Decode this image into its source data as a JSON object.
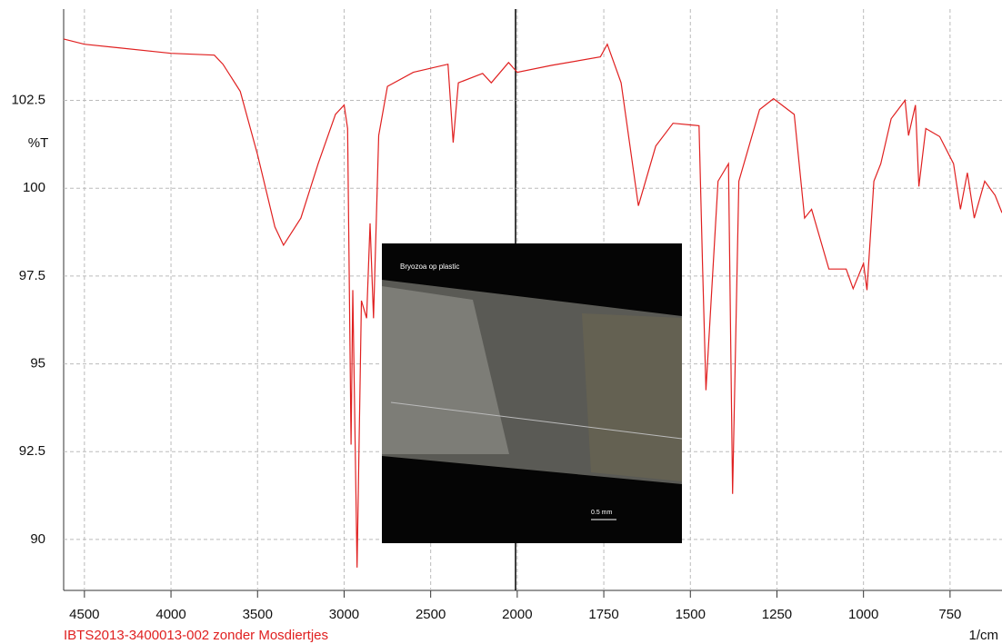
{
  "chart_data": {
    "type": "line",
    "x_label": "1/cm",
    "y_label": "%T",
    "footnote": "IBTS2013-3400013-002  zonder Mosdiertjes",
    "inset_caption": "Bryozoa op plastic",
    "inset_scale_label": "0.5 mm",
    "xlim": [
      4620,
      600
    ],
    "ylim": [
      88.55,
      105.1
    ],
    "xticks": [
      4500,
      4000,
      3500,
      3000,
      2500,
      2000,
      1750,
      1500,
      1250,
      1000,
      750
    ],
    "yticks": [
      90,
      92.5,
      95,
      97.5,
      100,
      102.5
    ],
    "grid": true,
    "series": [
      {
        "color": "#e02020",
        "x": [
          4620,
          4500,
          4000,
          3750,
          3700,
          3600,
          3500,
          3400,
          3350,
          3250,
          3150,
          3050,
          3000,
          2980,
          2960,
          2950,
          2925,
          2900,
          2870,
          2850,
          2830,
          2800,
          2750,
          2600,
          2400,
          2370,
          2340,
          2200,
          2150,
          2050,
          2000,
          1900,
          1760,
          1740,
          1700,
          1650,
          1600,
          1550,
          1475,
          1465,
          1455,
          1420,
          1390,
          1378,
          1360,
          1300,
          1260,
          1200,
          1170,
          1150,
          1100,
          1050,
          1030,
          1000,
          990,
          970,
          950,
          920,
          880,
          870,
          850,
          840,
          820,
          780,
          740,
          720,
          700,
          680,
          650,
          620,
          600
        ],
        "values": [
          104.25,
          104.1,
          103.84,
          103.79,
          103.53,
          102.76,
          100.95,
          98.9,
          98.38,
          99.15,
          100.7,
          102.1,
          102.37,
          101.7,
          92.7,
          97.1,
          89.2,
          96.8,
          96.3,
          99.0,
          96.3,
          101.5,
          102.9,
          103.3,
          103.53,
          101.3,
          103.0,
          103.27,
          103.0,
          103.58,
          103.3,
          103.5,
          103.74,
          104.1,
          103.0,
          99.5,
          101.2,
          101.85,
          101.78,
          97.86,
          94.25,
          100.2,
          100.7,
          91.3,
          100.2,
          102.24,
          102.55,
          102.1,
          99.15,
          99.4,
          97.7,
          97.7,
          97.14,
          97.86,
          97.1,
          100.2,
          100.7,
          101.98,
          102.5,
          101.5,
          102.37,
          100.05,
          101.7,
          101.47,
          100.7,
          99.4,
          100.44,
          99.15,
          100.2,
          99.8,
          99.3
        ]
      }
    ]
  }
}
